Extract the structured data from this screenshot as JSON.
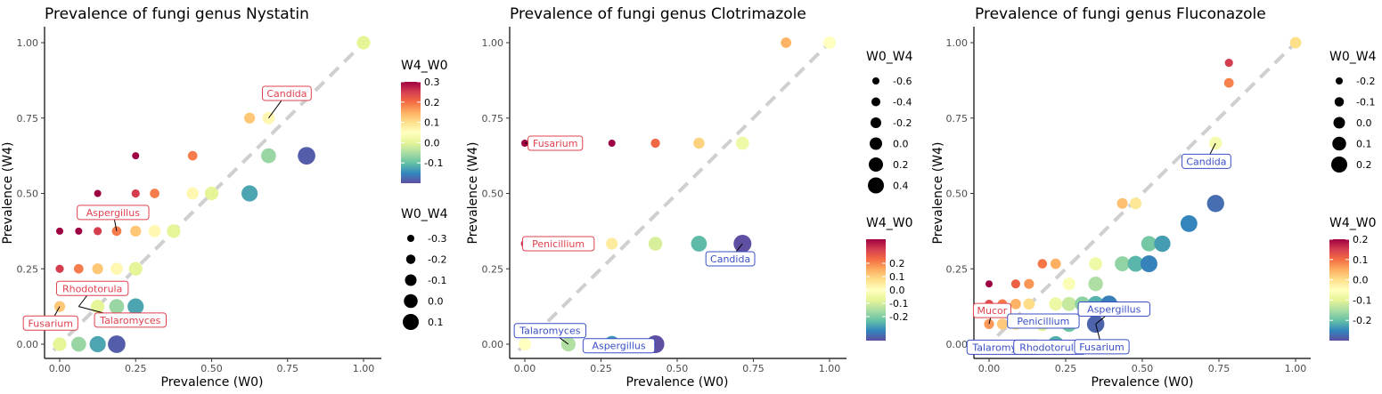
{
  "chart_data": [
    {
      "type": "scatter",
      "title": "Prevalence of fungi genus Nystatin",
      "xlabel": "Prevalence (W0)",
      "ylabel": "Prevalence (W4)",
      "xlim": [
        0,
        1
      ],
      "ylim": [
        0,
        1
      ],
      "xticks": [
        "0.00",
        "0.25",
        "0.50",
        "0.75",
        "1.00"
      ],
      "yticks": [
        "0.00",
        "0.25",
        "0.50",
        "0.75",
        "1.00"
      ],
      "grid": false,
      "reference_line": "y = x (dashed)",
      "color_legend": {
        "title": "W4_W0",
        "min": -0.2,
        "max": 0.3,
        "ticks": [
          "0.3",
          "0.2",
          "0.1",
          "0.0",
          "-0.1"
        ]
      },
      "size_legend": {
        "title": "W0_W4",
        "ticks": [
          "-0.3",
          "-0.2",
          "-0.1",
          "0.0",
          "0.1"
        ]
      },
      "legend_order": [
        "color",
        "size"
      ],
      "points": [
        {
          "x": 0.0,
          "y": 0.375,
          "w4_w0": 0.375
        },
        {
          "x": 0.0,
          "y": 0.25,
          "w4_w0": 0.25
        },
        {
          "x": 0.0,
          "y": 0.125,
          "w4_w0": 0.125
        },
        {
          "x": 0.0,
          "y": 0.0,
          "w4_w0": 0.0
        },
        {
          "x": 0.0625,
          "y": 0.375,
          "w4_w0": 0.3125
        },
        {
          "x": 0.0625,
          "y": 0.25,
          "w4_w0": 0.1875
        },
        {
          "x": 0.0625,
          "y": 0.0,
          "w4_w0": -0.0625
        },
        {
          "x": 0.125,
          "y": 0.5,
          "w4_w0": 0.375
        },
        {
          "x": 0.125,
          "y": 0.375,
          "w4_w0": 0.25
        },
        {
          "x": 0.125,
          "y": 0.25,
          "w4_w0": 0.125
        },
        {
          "x": 0.125,
          "y": 0.125,
          "w4_w0": 0.0
        },
        {
          "x": 0.125,
          "y": 0.0,
          "w4_w0": -0.125
        },
        {
          "x": 0.1875,
          "y": 0.375,
          "w4_w0": 0.1875
        },
        {
          "x": 0.1875,
          "y": 0.25,
          "w4_w0": 0.0625
        },
        {
          "x": 0.1875,
          "y": 0.125,
          "w4_w0": -0.0625
        },
        {
          "x": 0.1875,
          "y": 0.0,
          "w4_w0": -0.1875
        },
        {
          "x": 0.25,
          "y": 0.625,
          "w4_w0": 0.375
        },
        {
          "x": 0.25,
          "y": 0.5,
          "w4_w0": 0.25
        },
        {
          "x": 0.25,
          "y": 0.375,
          "w4_w0": 0.125
        },
        {
          "x": 0.25,
          "y": 0.25,
          "w4_w0": 0.0
        },
        {
          "x": 0.25,
          "y": 0.125,
          "w4_w0": -0.125
        },
        {
          "x": 0.3125,
          "y": 0.5,
          "w4_w0": 0.1875
        },
        {
          "x": 0.3125,
          "y": 0.375,
          "w4_w0": 0.0625
        },
        {
          "x": 0.375,
          "y": 0.375,
          "w4_w0": 0.0
        },
        {
          "x": 0.4375,
          "y": 0.625,
          "w4_w0": 0.1875
        },
        {
          "x": 0.4375,
          "y": 0.5,
          "w4_w0": 0.0625
        },
        {
          "x": 0.5,
          "y": 0.5,
          "w4_w0": 0.0
        },
        {
          "x": 0.625,
          "y": 0.75,
          "w4_w0": 0.125
        },
        {
          "x": 0.625,
          "y": 0.5,
          "w4_w0": -0.125
        },
        {
          "x": 0.6875,
          "y": 0.75,
          "w4_w0": 0.0625
        },
        {
          "x": 0.6875,
          "y": 0.625,
          "w4_w0": -0.0625
        },
        {
          "x": 0.8125,
          "y": 0.625,
          "w4_w0": -0.1875
        },
        {
          "x": 1.0,
          "y": 1.0,
          "w4_w0": 0.0
        }
      ],
      "labels": [
        {
          "text": "Candida",
          "x": 0.6875,
          "y": 0.75,
          "dx": 0.06,
          "dy": 0.082,
          "color": "#e0414f"
        },
        {
          "text": "Aspergillus",
          "x": 0.1875,
          "y": 0.375,
          "dx": -0.012,
          "dy": 0.062,
          "color": "#e0414f"
        },
        {
          "text": "Rhodotorula",
          "x": 0.0625,
          "y": 0.125,
          "dx": 0.045,
          "dy": 0.06,
          "color": "#e0414f"
        },
        {
          "text": "Fusarium",
          "x": 0.0,
          "y": 0.125,
          "dx": -0.03,
          "dy": -0.055,
          "color": "#e0414f"
        },
        {
          "text": "Talaromyces",
          "x": 0.0625,
          "y": 0.125,
          "dx": 0.17,
          "dy": -0.045,
          "color": "#e0414f"
        }
      ]
    },
    {
      "type": "scatter",
      "title": "Prevalence of fungi genus Clotrimazole",
      "xlabel": "Prevalence (W0)",
      "ylabel": "Prevalence (W4)",
      "xlim": [
        0,
        1
      ],
      "ylim": [
        0,
        1
      ],
      "xticks": [
        "0.00",
        "0.25",
        "0.50",
        "0.75",
        "1.00"
      ],
      "yticks": [
        "0.00",
        "0.25",
        "0.50",
        "0.75",
        "1.00"
      ],
      "grid": false,
      "reference_line": "y = x (dashed)",
      "color_legend": {
        "title": "W4_W0",
        "min": -0.38,
        "max": 0.38,
        "ticks": [
          "0.2",
          "0.1",
          "0.0",
          "-0.1",
          "-0.2"
        ]
      },
      "size_legend": {
        "title": "W0_W4",
        "ticks": [
          "-0.6",
          "-0.4",
          "-0.2",
          "0.0",
          "0.2",
          "0.4"
        ]
      },
      "legend_order": [
        "size",
        "color"
      ],
      "points": [
        {
          "x": 0.0,
          "y": 0.6667,
          "w4_w0": 0.6667
        },
        {
          "x": 0.0,
          "y": 0.3333,
          "w4_w0": 0.3333
        },
        {
          "x": 0.0,
          "y": 0.0,
          "w4_w0": 0.0
        },
        {
          "x": 0.1429,
          "y": 0.0,
          "w4_w0": -0.1429
        },
        {
          "x": 0.2857,
          "y": 0.6667,
          "w4_w0": 0.381
        },
        {
          "x": 0.2857,
          "y": 0.3333,
          "w4_w0": 0.0476
        },
        {
          "x": 0.2857,
          "y": 0.0,
          "w4_w0": -0.2857
        },
        {
          "x": 0.4286,
          "y": 0.6667,
          "w4_w0": 0.2381
        },
        {
          "x": 0.4286,
          "y": 0.3333,
          "w4_w0": -0.0952
        },
        {
          "x": 0.4286,
          "y": 0.0,
          "w4_w0": -0.4286
        },
        {
          "x": 0.5714,
          "y": 0.6667,
          "w4_w0": 0.0952
        },
        {
          "x": 0.5714,
          "y": 0.3333,
          "w4_w0": -0.2381
        },
        {
          "x": 0.7143,
          "y": 0.6667,
          "w4_w0": -0.0476
        },
        {
          "x": 0.7143,
          "y": 0.3333,
          "w4_w0": -0.381
        },
        {
          "x": 0.8571,
          "y": 1.0,
          "w4_w0": 0.1429
        },
        {
          "x": 1.0,
          "y": 1.0,
          "w4_w0": 0.0
        }
      ],
      "labels": [
        {
          "text": "Fusarium",
          "x": 0.0,
          "y": 0.6667,
          "dx": 0.1,
          "dy": 0.0,
          "color": "#e0414f"
        },
        {
          "text": "Penicillium",
          "x": 0.0,
          "y": 0.3333,
          "dx": 0.11,
          "dy": 0.0,
          "color": "#e0414f"
        },
        {
          "text": "Candida",
          "x": 0.7143,
          "y": 0.3333,
          "dx": -0.04,
          "dy": -0.05,
          "color": "#3a4fc4"
        },
        {
          "text": "Talaromyces",
          "x": 0.1429,
          "y": 0.0,
          "dx": -0.06,
          "dy": 0.045,
          "color": "#3a4fc4"
        },
        {
          "text": "Aspergillus",
          "x": 0.4286,
          "y": 0.0,
          "dx": -0.12,
          "dy": -0.005,
          "color": "#3a4fc4"
        }
      ]
    },
    {
      "type": "scatter",
      "title": "Prevalence of fungi genus Fluconazole",
      "xlabel": "Prevalence (W0)",
      "ylabel": "Prevalence (W4)",
      "xlim": [
        0,
        1
      ],
      "ylim": [
        0,
        1
      ],
      "xticks": [
        "0.00",
        "0.25",
        "0.50",
        "0.75",
        "1.00"
      ],
      "yticks": [
        "0.00",
        "0.25",
        "0.50",
        "0.75",
        "1.00"
      ],
      "grid": false,
      "reference_line": "y = x (dashed)",
      "color_legend": {
        "title": "W4_W0",
        "min": -0.3,
        "max": 0.2,
        "ticks": [
          "0.2",
          "0.1",
          "0.0",
          "-0.1",
          "-0.2"
        ]
      },
      "size_legend": {
        "title": "W0_W4",
        "ticks": [
          "-0.2",
          "-0.1",
          "0.0",
          "0.1",
          "0.2"
        ]
      },
      "legend_order": [
        "size",
        "color"
      ],
      "points": [
        {
          "x": 0.0,
          "y": 0.2,
          "w4_w0": 0.2
        },
        {
          "x": 0.0,
          "y": 0.1333,
          "w4_w0": 0.1333
        },
        {
          "x": 0.0,
          "y": 0.0667,
          "w4_w0": 0.0667
        },
        {
          "x": 0.0435,
          "y": 0.1333,
          "w4_w0": 0.0898
        },
        {
          "x": 0.0435,
          "y": 0.0667,
          "w4_w0": 0.0232
        },
        {
          "x": 0.087,
          "y": 0.2,
          "w4_w0": 0.113
        },
        {
          "x": 0.087,
          "y": 0.1333,
          "w4_w0": 0.0464
        },
        {
          "x": 0.087,
          "y": 0.0667,
          "w4_w0": -0.0203
        },
        {
          "x": 0.1304,
          "y": 0.2,
          "w4_w0": 0.0696
        },
        {
          "x": 0.1304,
          "y": 0.1333,
          "w4_w0": 0.0029
        },
        {
          "x": 0.1739,
          "y": 0.2667,
          "w4_w0": 0.0928
        },
        {
          "x": 0.1739,
          "y": 0.0667,
          "w4_w0": -0.1072
        },
        {
          "x": 0.2174,
          "y": 0.2667,
          "w4_w0": 0.0493
        },
        {
          "x": 0.2174,
          "y": 0.1333,
          "w4_w0": -0.0841
        },
        {
          "x": 0.2174,
          "y": 0.0,
          "w4_w0": -0.2174
        },
        {
          "x": 0.2609,
          "y": 0.2,
          "w4_w0": -0.0609
        },
        {
          "x": 0.2609,
          "y": 0.1333,
          "w4_w0": -0.1275
        },
        {
          "x": 0.2609,
          "y": 0.0667,
          "w4_w0": -0.1942
        },
        {
          "x": 0.3043,
          "y": 0.1333,
          "w4_w0": -0.171
        },
        {
          "x": 0.3478,
          "y": 0.2667,
          "w4_w0": -0.0812
        },
        {
          "x": 0.3478,
          "y": 0.2,
          "w4_w0": -0.1478
        },
        {
          "x": 0.3478,
          "y": 0.1333,
          "w4_w0": -0.2145
        },
        {
          "x": 0.3478,
          "y": 0.0667,
          "w4_w0": -0.2812
        },
        {
          "x": 0.3913,
          "y": 0.1333,
          "w4_w0": -0.258
        },
        {
          "x": 0.4348,
          "y": 0.2667,
          "w4_w0": -0.1681
        },
        {
          "x": 0.4348,
          "y": 0.4667,
          "w4_w0": 0.0319
        },
        {
          "x": 0.4783,
          "y": 0.4667,
          "w4_w0": -0.0116
        },
        {
          "x": 0.4783,
          "y": 0.2667,
          "w4_w0": -0.2116
        },
        {
          "x": 0.5217,
          "y": 0.3333,
          "w4_w0": -0.1884
        },
        {
          "x": 0.5217,
          "y": 0.2667,
          "w4_w0": -0.2551
        },
        {
          "x": 0.5652,
          "y": 0.3333,
          "w4_w0": -0.2319
        },
        {
          "x": 0.6522,
          "y": 0.4,
          "w4_w0": -0.2522
        },
        {
          "x": 0.7391,
          "y": 0.6667,
          "w4_w0": -0.0725
        },
        {
          "x": 0.7391,
          "y": 0.4667,
          "w4_w0": -0.2725
        },
        {
          "x": 0.7826,
          "y": 0.9333,
          "w4_w0": 0.1507
        },
        {
          "x": 0.7826,
          "y": 0.8667,
          "w4_w0": 0.0841
        },
        {
          "x": 1.0,
          "y": 1.0,
          "w4_w0": 0.0
        }
      ],
      "labels": [
        {
          "text": "Candida",
          "x": 0.7391,
          "y": 0.6667,
          "dx": -0.03,
          "dy": -0.06,
          "color": "#3a4fc4"
        },
        {
          "text": "Mucor",
          "x": 0.0,
          "y": 0.0667,
          "dx": 0.01,
          "dy": 0.045,
          "color": "#e0414f"
        },
        {
          "text": "Penicillium",
          "x": 0.087,
          "y": 0.0667,
          "dx": 0.09,
          "dy": 0.01,
          "color": "#3a4fc4"
        },
        {
          "text": "Aspergillus",
          "x": 0.3478,
          "y": 0.0667,
          "dx": 0.06,
          "dy": 0.05,
          "color": "#3a4fc4"
        },
        {
          "text": "Talaromyces",
          "x": 0.0,
          "y": 0.0,
          "dx": 0.045,
          "dy": -0.01,
          "color": "#3a4fc4"
        },
        {
          "text": "Rhodotorula",
          "x": 0.2174,
          "y": 0.0,
          "dx": -0.02,
          "dy": -0.01,
          "color": "#3a4fc4"
        },
        {
          "text": "Fusarium",
          "x": 0.3478,
          "y": 0.0667,
          "dx": 0.02,
          "dy": -0.075,
          "color": "#3a4fc4"
        }
      ]
    }
  ]
}
